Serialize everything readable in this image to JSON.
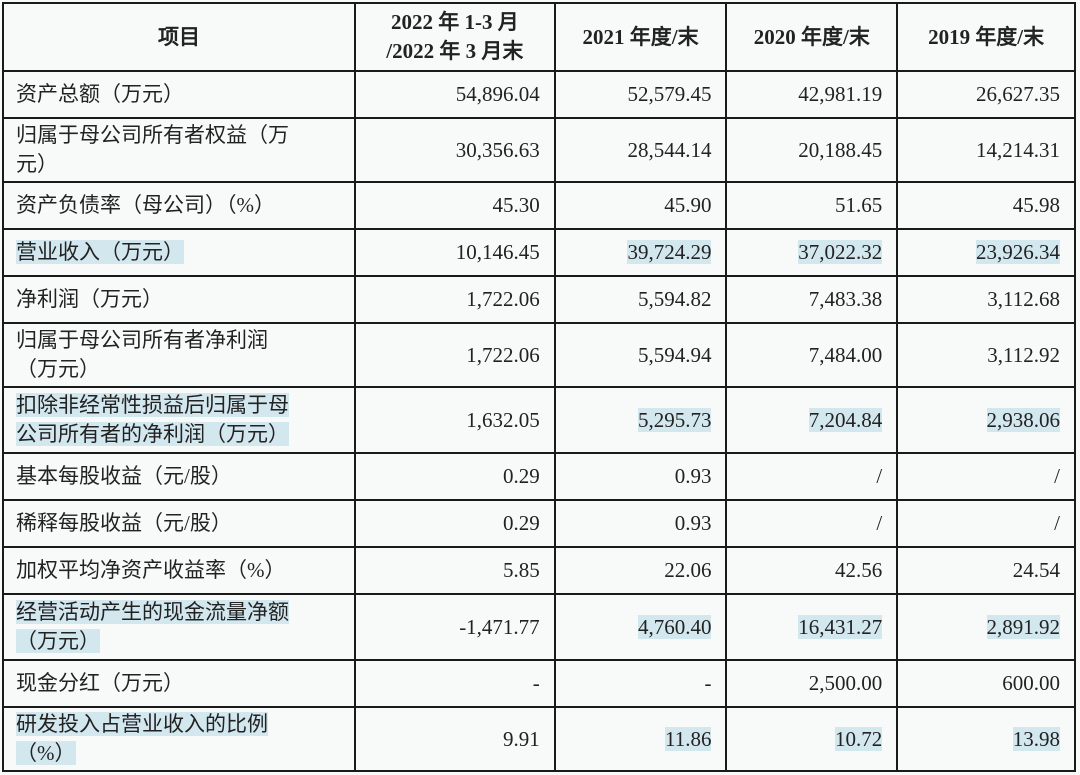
{
  "highlight_color": "#d3e7ee",
  "headers": [
    "项目",
    "2022年1-3月/2022年3月末",
    "2021年度/末",
    "2020年度/末",
    "2019年度/末"
  ],
  "header_lines": [
    [
      "项目"
    ],
    [
      "2022 年 1-3 月",
      "/2022 年 3 月末"
    ],
    [
      "2021 年度/末"
    ],
    [
      "2020 年度/末"
    ],
    [
      "2019 年度/末"
    ]
  ],
  "rows": [
    {
      "label": [
        "资产总额（万元）"
      ],
      "values": [
        "54,896.04",
        "52,579.45",
        "42,981.19",
        "26,627.35"
      ],
      "highlighted": false
    },
    {
      "label": [
        "归属于母公司所有者权益（万",
        "元）"
      ],
      "values": [
        "30,356.63",
        "28,544.14",
        "20,188.45",
        "14,214.31"
      ],
      "highlighted": false
    },
    {
      "label": [
        "资产负债率（母公司）（%）"
      ],
      "values": [
        "45.30",
        "45.90",
        "51.65",
        "45.98"
      ],
      "highlighted": false
    },
    {
      "label": [
        "营业收入（万元）"
      ],
      "values": [
        "10,146.45",
        "39,724.29",
        "37,022.32",
        "23,926.34"
      ],
      "highlighted": true
    },
    {
      "label": [
        "净利润（万元）"
      ],
      "values": [
        "1,722.06",
        "5,594.82",
        "7,483.38",
        "3,112.68"
      ],
      "highlighted": false
    },
    {
      "label": [
        "归属于母公司所有者净利润",
        "（万元）"
      ],
      "values": [
        "1,722.06",
        "5,594.94",
        "7,484.00",
        "3,112.92"
      ],
      "highlighted": false
    },
    {
      "label": [
        "扣除非经常性损益后归属于母",
        "公司所有者的净利润（万元）"
      ],
      "values": [
        "1,632.05",
        "5,295.73",
        "7,204.84",
        "2,938.06"
      ],
      "highlighted": true
    },
    {
      "label": [
        "基本每股收益（元/股）"
      ],
      "values": [
        "0.29",
        "0.93",
        "/",
        "/"
      ],
      "highlighted": false
    },
    {
      "label": [
        "稀释每股收益（元/股）"
      ],
      "values": [
        "0.29",
        "0.93",
        "/",
        "/"
      ],
      "highlighted": false
    },
    {
      "label": [
        "加权平均净资产收益率（%）"
      ],
      "values": [
        "5.85",
        "22.06",
        "42.56",
        "24.54"
      ],
      "highlighted": false
    },
    {
      "label": [
        "经营活动产生的现金流量净额",
        "（万元）"
      ],
      "values": [
        "-1,471.77",
        "4,760.40",
        "16,431.27",
        "2,891.92"
      ],
      "highlighted": true
    },
    {
      "label": [
        "现金分红（万元）"
      ],
      "values": [
        "-",
        "-",
        "2,500.00",
        "600.00"
      ],
      "highlighted": false
    },
    {
      "label": [
        "研发投入占营业收入的比例",
        "（%）"
      ],
      "values": [
        "9.91",
        "11.86",
        "10.72",
        "13.98"
      ],
      "highlighted": true
    }
  ]
}
